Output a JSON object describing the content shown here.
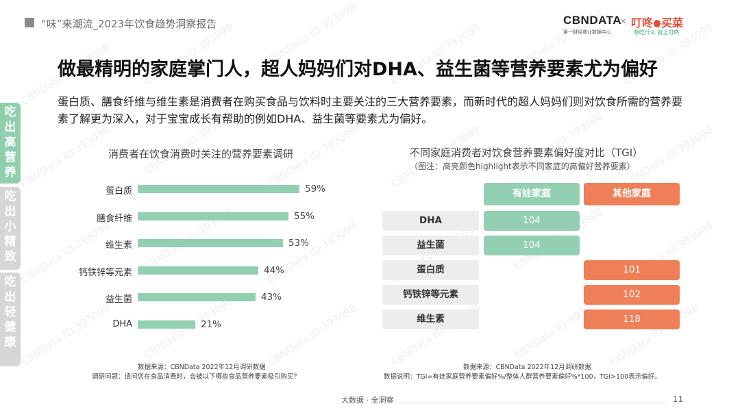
{
  "header": {
    "title": "“味”来潮流_2023年饮食趋势洞察报告",
    "logo_cbn": "CBNDATA",
    "logo_cbn_sub": "第一财经商业数据中心",
    "logo_x": "×",
    "logo_dd_a": "叮咚",
    "logo_dd_b": "买菜",
    "logo_dd_sub": "想吃什么 就上叮咚"
  },
  "main": {
    "title": "做最精明的家庭掌门人，超人妈妈们对DHA、益生菌等营养要素尤为偏好",
    "intro": "蛋白质、膳食纤维与维生素是消费者在购买食品与饮料时主要关注的三大营养要素，而新时代的超人妈妈们则对饮食所需的营养要素了解更为深入，对于宝宝成长有帮助的例如DHA、益生菌等要素尤为偏好。"
  },
  "side_tabs": [
    {
      "label": "吃出高营养",
      "active": true
    },
    {
      "label": "吃出小精致",
      "active": false
    },
    {
      "label": "吃出轻健康",
      "active": false
    }
  ],
  "colors": {
    "green": "#93cfb1",
    "orange": "#ee7f58",
    "tab_active": "#8fcfad",
    "tab_inactive": "#d6d6d6"
  },
  "chart_data": [
    {
      "type": "bar",
      "orientation": "horizontal",
      "title": "消费者在饮食消费时关注的营养要素调研",
      "categories": [
        "蛋白质",
        "膳食纤维",
        "维生素",
        "钙铁锌等元素",
        "益生菌",
        "DHA"
      ],
      "values": [
        59,
        55,
        53,
        44,
        43,
        21
      ],
      "value_labels": [
        "59%",
        "55%",
        "53%",
        "44%",
        "43%",
        "21%"
      ],
      "unit": "%",
      "xlim": [
        0,
        100
      ],
      "source": "数据来源：CBNData 2022年12月调研数据",
      "note": "调研问题：请问您在食品消费时，会被以下哪些食品营养要素吸引购买？"
    },
    {
      "type": "table",
      "title": "不同家庭消费者对饮食营养要素偏好度对比（TGI）",
      "subtitle": "（图注：高亮颜色highlight表示不同家庭的高偏好营养要素）",
      "columns": [
        "有娃家庭",
        "其他家庭"
      ],
      "rows": [
        {
          "label": "DHA",
          "col": "有娃家庭",
          "value": 104
        },
        {
          "label": "益生菌",
          "col": "有娃家庭",
          "value": 104
        },
        {
          "label": "蛋白质",
          "col": "其他家庭",
          "value": 101
        },
        {
          "label": "钙铁锌等元素",
          "col": "其他家庭",
          "value": 102
        },
        {
          "label": "维生素",
          "col": "其他家庭",
          "value": 118
        }
      ],
      "source": "数据来源：CBNData 2022年12月调研数据",
      "note": "数据说明：TGI=有娃家庭营养要素偏好%/整体人群营养要素偏好%*100，TGI>100表示偏好。"
    }
  ],
  "footer": {
    "center": "大数据 · 全洞察",
    "page": "11"
  },
  "watermark": "CBNData ID:393098"
}
